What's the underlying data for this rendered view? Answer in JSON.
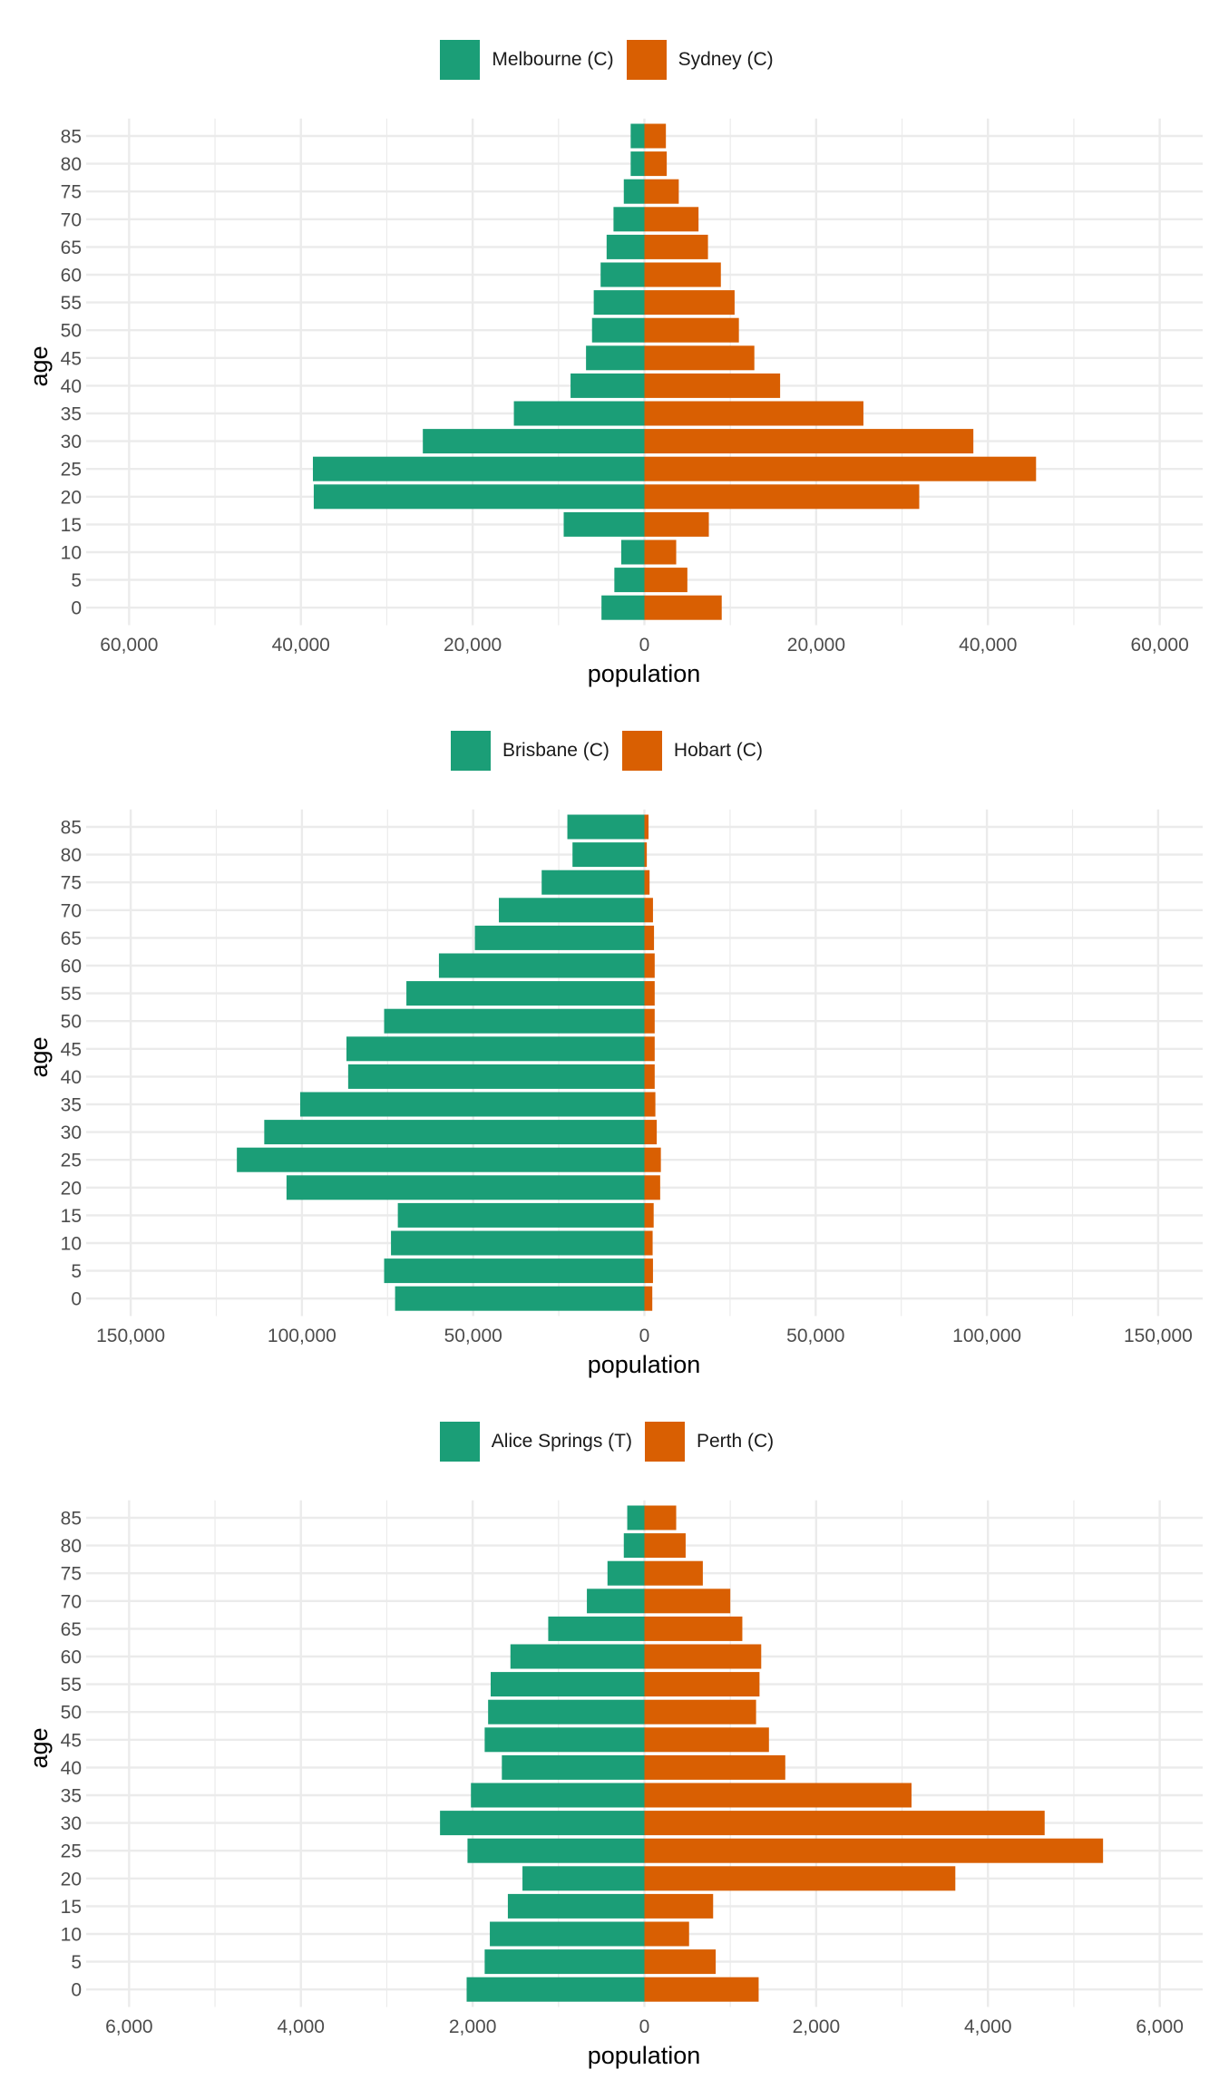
{
  "colors": {
    "left": "#1B9E77",
    "right": "#D95F02",
    "grid": "#EBEBEB"
  },
  "chart_data": [
    {
      "type": "bar",
      "orientation": "horizontal",
      "layout": "population-pyramid",
      "xlabel": "population",
      "ylabel": "age",
      "legend_position": "top",
      "grid": true,
      "xlim": [
        -65000,
        65000
      ],
      "x_ticks": [
        -60000,
        -40000,
        -20000,
        0,
        20000,
        40000,
        60000
      ],
      "x_tick_labels": [
        "60,000",
        "40,000",
        "20,000",
        "0",
        "20,000",
        "40,000",
        "60,000"
      ],
      "categories": [
        0,
        5,
        10,
        15,
        20,
        25,
        30,
        35,
        40,
        45,
        50,
        55,
        60,
        65,
        70,
        75,
        80,
        85
      ],
      "category_labels": [
        "0",
        "5",
        "10",
        "15",
        "20",
        "25",
        "30",
        "35",
        "40",
        "45",
        "50",
        "55",
        "60",
        "65",
        "70",
        "75",
        "80",
        "85"
      ],
      "series": [
        {
          "name": "Melbourne (C)",
          "side": "left",
          "values": [
            5000,
            3500,
            2700,
            9400,
            38500,
            38600,
            25800,
            15200,
            8600,
            6800,
            6100,
            5900,
            5100,
            4400,
            3600,
            2400,
            1600,
            1600
          ]
        },
        {
          "name": "Sydney (C)",
          "side": "right",
          "values": [
            9000,
            5000,
            3700,
            7500,
            32000,
            45600,
            38300,
            25500,
            15800,
            12800,
            11000,
            10500,
            8900,
            7400,
            6300,
            4000,
            2600,
            2500
          ]
        }
      ]
    },
    {
      "type": "bar",
      "orientation": "horizontal",
      "layout": "population-pyramid",
      "xlabel": "population",
      "ylabel": "age",
      "legend_position": "top",
      "grid": true,
      "xlim": [
        -163000,
        163000
      ],
      "x_ticks": [
        -150000,
        -100000,
        -50000,
        0,
        50000,
        100000,
        150000
      ],
      "x_tick_labels": [
        "150,000",
        "100,000",
        "50,000",
        "0",
        "50,000",
        "100,000",
        "150,000"
      ],
      "categories": [
        0,
        5,
        10,
        15,
        20,
        25,
        30,
        35,
        40,
        45,
        50,
        55,
        60,
        65,
        70,
        75,
        80,
        85
      ],
      "category_labels": [
        "0",
        "5",
        "10",
        "15",
        "20",
        "25",
        "30",
        "35",
        "40",
        "45",
        "50",
        "55",
        "60",
        "65",
        "70",
        "75",
        "80",
        "85"
      ],
      "series": [
        {
          "name": "Brisbane (C)",
          "side": "left",
          "values": [
            72800,
            76000,
            74000,
            72000,
            104500,
            119000,
            111000,
            100500,
            86500,
            87000,
            76000,
            69500,
            60000,
            49500,
            42500,
            30000,
            21000,
            22500
          ]
        },
        {
          "name": "Hobart (C)",
          "side": "right",
          "values": [
            2300,
            2500,
            2400,
            2700,
            4600,
            4800,
            3600,
            3200,
            3000,
            3000,
            3000,
            3000,
            3000,
            2800,
            2500,
            1500,
            700,
            1200
          ]
        }
      ]
    },
    {
      "type": "bar",
      "orientation": "horizontal",
      "layout": "population-pyramid",
      "xlabel": "population",
      "ylabel": "age",
      "legend_position": "top",
      "grid": true,
      "xlim": [
        -6500,
        6500
      ],
      "x_ticks": [
        -6000,
        -4000,
        -2000,
        0,
        2000,
        4000,
        6000
      ],
      "x_tick_labels": [
        "6,000",
        "4,000",
        "2,000",
        "0",
        "2,000",
        "4,000",
        "6,000"
      ],
      "categories": [
        0,
        5,
        10,
        15,
        20,
        25,
        30,
        35,
        40,
        45,
        50,
        55,
        60,
        65,
        70,
        75,
        80,
        85
      ],
      "category_labels": [
        "0",
        "5",
        "10",
        "15",
        "20",
        "25",
        "30",
        "35",
        "40",
        "45",
        "50",
        "55",
        "60",
        "65",
        "70",
        "75",
        "80",
        "85"
      ],
      "series": [
        {
          "name": "Alice Springs (T)",
          "side": "left",
          "values": [
            2070,
            1860,
            1800,
            1590,
            1420,
            2060,
            2380,
            2020,
            1660,
            1860,
            1820,
            1790,
            1560,
            1120,
            670,
            430,
            240,
            200
          ]
        },
        {
          "name": "Perth (C)",
          "side": "right",
          "values": [
            1330,
            830,
            520,
            800,
            3620,
            5340,
            4660,
            3110,
            1640,
            1450,
            1300,
            1340,
            1360,
            1140,
            1000,
            680,
            480,
            370
          ]
        }
      ]
    }
  ]
}
